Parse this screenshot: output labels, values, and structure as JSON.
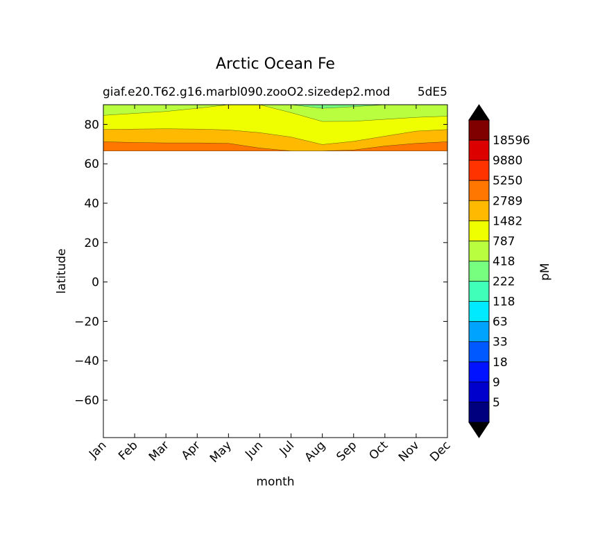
{
  "chart_data": {
    "type": "contourf",
    "title": "Arctic Ocean Fe",
    "subtitle": "giaf.e20.T62.g16.marbl090.zooO2.sizedep2.mod",
    "subtitle_right": "5dE5",
    "xlabel": "month",
    "ylabel": "latitude",
    "x_categories": [
      "Jan",
      "Feb",
      "Mar",
      "Apr",
      "May",
      "Jun",
      "Jul",
      "Aug",
      "Sep",
      "Oct",
      "Nov",
      "Dec"
    ],
    "ylim": [
      -79,
      90
    ],
    "y_ticks": [
      80,
      60,
      40,
      20,
      0,
      -20,
      -40,
      -60
    ],
    "y_tick_labels": [
      "80",
      "60",
      "40",
      "20",
      "0",
      "−20",
      "−40",
      "−60"
    ],
    "data_lat_range": [
      66.5,
      90
    ],
    "colorbar": {
      "label": "pM",
      "levels": [
        "18596",
        "9880",
        "5250",
        "2789",
        "1482",
        "787",
        "418",
        "222",
        "118",
        "63",
        "33",
        "18",
        "9",
        "5"
      ],
      "colors": [
        "#800000",
        "#dd0000",
        "#ff3300",
        "#ff7700",
        "#ffb900",
        "#efff00",
        "#b9ff3f",
        "#77ff7f",
        "#3fffb9",
        "#00eaff",
        "#00a4ff",
        "#0059ff",
        "#0012ff",
        "#0000cc",
        "#00007f"
      ],
      "extend": "both",
      "extend_color": "#000000"
    },
    "contour_bands": [
      {
        "level_below": "2789",
        "color": "#ff7700",
        "lat": [
          66.5,
          66.5,
          66.5,
          66.5,
          66.5,
          66.5,
          66.5,
          66.5,
          66.5,
          66.5,
          66.5,
          66.5
        ]
      },
      {
        "level_below": "1482",
        "color": "#ffb900",
        "lat": [
          71.2,
          70.8,
          70.6,
          70.6,
          70.4,
          68.0,
          66.5,
          66.5,
          67.0,
          69.0,
          70.4,
          71.2
        ]
      },
      {
        "level_below": "787",
        "color": "#efff00",
        "lat": [
          77.4,
          77.6,
          77.8,
          77.6,
          77.2,
          75.8,
          73.6,
          69.8,
          71.4,
          74.0,
          76.6,
          77.4
        ]
      },
      {
        "level_below": "418",
        "color": "#b9ff3f",
        "lat": [
          84.6,
          85.6,
          86.6,
          88.2,
          90.0,
          90.0,
          86.0,
          81.5,
          81.6,
          82.6,
          83.6,
          84.2
        ]
      },
      {
        "level_below": "222",
        "color": "#77ff7f",
        "lat": [
          90.0,
          90.0,
          90.0,
          90.0,
          90.0,
          90.0,
          90.0,
          88.2,
          89.0,
          90.0,
          90.0,
          90.0
        ]
      }
    ],
    "base_band": {
      "level_below": "5250",
      "color": "#ff3300"
    }
  }
}
